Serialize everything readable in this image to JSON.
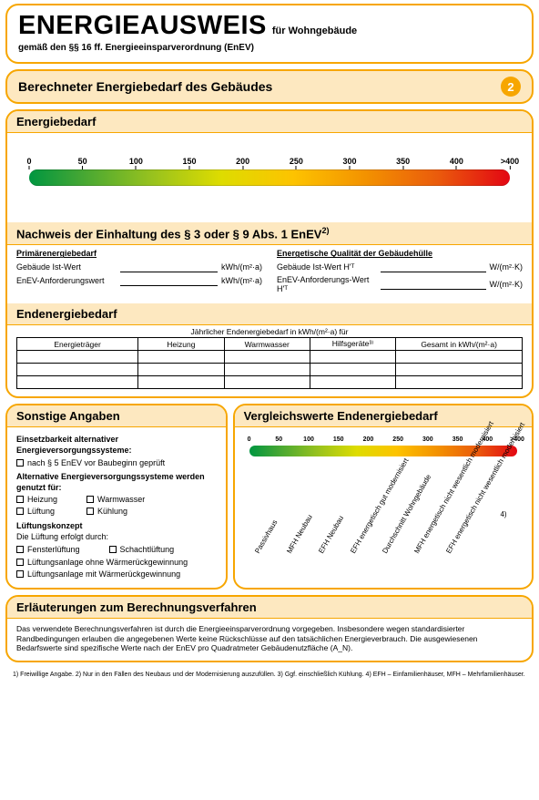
{
  "header": {
    "title": "ENERGIEAUSWEIS",
    "title_sub": "für Wohngebäude",
    "line2": "gemäß den §§ 16 ff. Energieeinsparverordnung (EnEV)"
  },
  "section2": {
    "bar_title": "Berechneter Energiebedarf des Gebäudes",
    "number": "2",
    "energiebedarf_head": "Energiebedarf"
  },
  "scale": {
    "ticks": [
      "0",
      "50",
      "100",
      "150",
      "200",
      "250",
      "300",
      "350",
      "400",
      ">400"
    ],
    "gradient_css": "linear-gradient(90deg,#009640 0%,#3fa535 10%,#95c11f 25%,#dedc00 40%,#fdc300 55%,#f39200 70%,#ea5b0c 85%,#e30613 100%)"
  },
  "nachweis": {
    "head": "Nachweis der Einhaltung des § 3 oder § 9 Abs. 1 EnEV",
    "left_title": "Primärenergiebedarf",
    "right_title": "Energetische Qualität der Gebäudehülle",
    "left_rows": [
      {
        "label": "Gebäude Ist-Wert",
        "unit": "kWh/(m²·a)"
      },
      {
        "label": "EnEV-Anforderungswert",
        "unit": "kWh/(m²·a)"
      }
    ],
    "right_rows": [
      {
        "label": "Gebäude Ist-Wert H'ᵀ",
        "unit": "W/(m²·K)"
      },
      {
        "label": "EnEV-Anforderungs-Wert H'ᵀ",
        "unit": "W/(m²·K)"
      }
    ]
  },
  "endtable": {
    "head": "Endenergiebedarf",
    "caption": "Jährlicher Endenergiebedarf in kWh/(m²·a) für",
    "cols_inner": [
      "Heizung",
      "Warmwasser",
      "Hilfsgeräte³⁾"
    ],
    "col_left": "Energieträger",
    "col_right": "Gesamt in kWh/(m²·a)",
    "rows": 3
  },
  "sonstige": {
    "head": "Sonstige Angaben",
    "l1": "Einsetzbarkeit alternativer Energieversorgungssysteme:",
    "c1": "nach § 5 EnEV vor Baubeginn geprüft",
    "l2": "Alternative Energieversorgungssysteme werden genutzt für:",
    "opts": [
      "Heizung",
      "Warmwasser",
      "Lüftung",
      "Kühlung"
    ],
    "l3": "Lüftungskonzept",
    "l3b": "Die Lüftung erfolgt durch:",
    "lopts": [
      "Fensterlüftung",
      "Schachtlüftung",
      "Lüftungsanlage ohne Wärmerückgewinnung",
      "Lüftungsanlage mit Wärmerückgewinnung"
    ]
  },
  "vergleich": {
    "head": "Vergleichswerte Endenergiebedarf",
    "labels": [
      "Passivhaus",
      "MFH Neubau",
      "EFH Neubau",
      "EFH energetisch gut modernisiert",
      "Durchschnitt Wohngebäude",
      "MFH energetisch nicht wesentlich modernisiert",
      "EFH energetisch nicht wesentlich modernisiert"
    ],
    "note4": "4)"
  },
  "erl": {
    "head": "Erläuterungen zum Berechnungsverfahren",
    "text": "Das verwendete Berechnungsverfahren ist durch die Energieeinsparverordnung vorgegeben. Insbesondere wegen standardisierter Randbedingungen erlauben die angegebenen Werte keine Rückschlüsse auf den tatsächlichen Energieverbrauch. Die ausgewiesenen Bedarfswerte sind spezifische Werte nach der EnEV pro Quadratmeter Gebäudenutzfläche (A_N)."
  },
  "footnotes": "1) Freiwillige Angabe.   2) Nur in den Fällen des Neubaus und der Modernisierung auszufüllen.   3) Ggf. einschließlich Kühlung.   4) EFH – Einfamilienhäuser, MFH – Mehrfamilienhäuser.",
  "colors": {
    "panel_border": "#f7a600",
    "subhead_bg": "#fde8c0",
    "circle_bg": "#f7a600"
  }
}
